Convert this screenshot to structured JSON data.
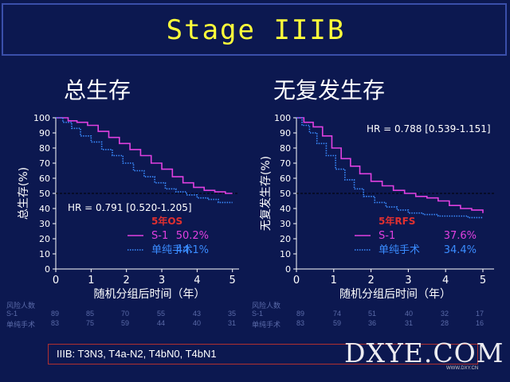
{
  "slide": {
    "title": "Stage IIIB",
    "footer": "IIIB: T3N3, T4a-N2, T4bN0, T4bN1",
    "watermark": "DXYE.COM",
    "watermark_sub": "WWW.DXY.CN"
  },
  "chart_data": [
    {
      "type": "line",
      "title": "总生存",
      "xlabel": "随机分组后时间（年）",
      "ylabel": "总生存(%)",
      "xlim": [
        0,
        5.3
      ],
      "ylim": [
        0,
        100
      ],
      "xticks": [
        "0",
        "1",
        "2",
        "3",
        "4",
        "5"
      ],
      "yticks": [
        "0",
        "10",
        "20",
        "30",
        "40",
        "50",
        "60",
        "70",
        "80",
        "90",
        "100"
      ],
      "reference_line_y": 50,
      "hr_text": "HR = 0.791    [0.520-1.205]",
      "legend_header": "5年OS",
      "series": [
        {
          "name": "S-1",
          "value_label": "50.2%",
          "color": "#e040e0",
          "style": "solid",
          "x": [
            0,
            0.35,
            0.6,
            0.9,
            1.2,
            1.5,
            1.8,
            2.1,
            2.4,
            2.7,
            3.0,
            3.3,
            3.6,
            3.9,
            4.2,
            4.5,
            4.8,
            5.0
          ],
          "y": [
            100,
            98,
            97,
            95,
            91,
            87,
            83,
            79,
            75,
            70,
            66,
            61,
            57,
            54,
            52,
            51,
            50,
            50
          ]
        },
        {
          "name": "单纯手术",
          "value_label": "44.1%",
          "color": "#3a8cff",
          "style": "dotted",
          "x": [
            0,
            0.2,
            0.45,
            0.7,
            1.0,
            1.3,
            1.6,
            1.9,
            2.2,
            2.5,
            2.8,
            3.1,
            3.4,
            3.7,
            4.0,
            4.3,
            4.6,
            5.0
          ],
          "y": [
            100,
            97,
            93,
            88,
            84,
            79,
            75,
            70,
            65,
            61,
            57,
            53,
            51,
            49,
            47,
            46,
            44,
            44
          ]
        }
      ],
      "risk_table": {
        "header": "风险人数",
        "rows": [
          {
            "label": "S-1",
            "values": [
              "89",
              "85",
              "70",
              "55",
              "43",
              "35"
            ]
          },
          {
            "label": "单纯手术",
            "values": [
              "83",
              "75",
              "59",
              "44",
              "40",
              "31"
            ]
          }
        ]
      }
    },
    {
      "type": "line",
      "title": "无复发生存",
      "xlabel": "随机分组后时间（年）",
      "ylabel": "无复发生存(%)",
      "xlim": [
        0,
        5.3
      ],
      "ylim": [
        0,
        100
      ],
      "xticks": [
        "0",
        "1",
        "2",
        "3",
        "4",
        "5"
      ],
      "yticks": [
        "0",
        "10",
        "20",
        "30",
        "40",
        "50",
        "60",
        "70",
        "80",
        "90",
        "100"
      ],
      "reference_line_y": 50,
      "hr_text": "HR = 0.788 [0.539-1.151]",
      "legend_header": "5年RFS",
      "series": [
        {
          "name": "S-1",
          "value_label": "37.6%",
          "color": "#e040e0",
          "style": "solid",
          "x": [
            0,
            0.2,
            0.45,
            0.7,
            0.95,
            1.2,
            1.45,
            1.7,
            2.0,
            2.3,
            2.6,
            2.9,
            3.2,
            3.5,
            3.8,
            4.1,
            4.4,
            4.7,
            5.0
          ],
          "y": [
            100,
            97,
            94,
            88,
            80,
            73,
            68,
            63,
            58,
            55,
            52,
            50,
            48,
            47,
            45,
            42,
            40,
            39,
            37
          ]
        },
        {
          "name": "单纯手术",
          "value_label": "34.4%",
          "color": "#3a8cff",
          "style": "dotted",
          "x": [
            0,
            0.15,
            0.35,
            0.55,
            0.8,
            1.05,
            1.3,
            1.55,
            1.8,
            2.1,
            2.4,
            2.7,
            3.0,
            3.4,
            3.8,
            4.2,
            4.6,
            5.0
          ],
          "y": [
            100,
            95,
            90,
            83,
            75,
            66,
            59,
            53,
            48,
            44,
            41,
            39,
            37,
            36,
            35,
            35,
            34,
            34
          ]
        }
      ],
      "risk_table": {
        "header": "风险人数",
        "rows": [
          {
            "label": "S-1",
            "values": [
              "89",
              "74",
              "51",
              "40",
              "32",
              "17"
            ]
          },
          {
            "label": "单纯手术",
            "values": [
              "83",
              "59",
              "36",
              "31",
              "28",
              "16"
            ]
          }
        ]
      }
    }
  ]
}
